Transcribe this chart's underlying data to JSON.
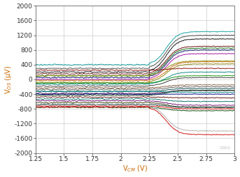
{
  "xlabel": "V$_{CM}$ (V)",
  "ylabel": "V$_{OS}$ (μV)",
  "xlim": [
    1.25,
    3.0
  ],
  "ylim": [
    -2000,
    2000
  ],
  "xticks": [
    1.25,
    1.5,
    1.75,
    2.0,
    2.25,
    2.5,
    2.75,
    3.0
  ],
  "yticks": [
    -2000,
    -1600,
    -1200,
    -800,
    -400,
    0,
    400,
    800,
    1200,
    1600,
    2000
  ],
  "watermark": "C001",
  "x_start": 1.25,
  "x_trans_start": 2.25,
  "x_trans_end": 2.75,
  "x_end": 3.0,
  "traces": [
    {
      "flat": 400,
      "final": 1300,
      "color": "#009999",
      "lw": 0.7
    },
    {
      "flat": 300,
      "final": 1200,
      "color": "#444444",
      "lw": 0.7
    },
    {
      "flat": 200,
      "final": 1100,
      "color": "#000000",
      "lw": 0.7
    },
    {
      "flat": 150,
      "final": 900,
      "color": "#660000",
      "lw": 0.7
    },
    {
      "flat": 100,
      "final": 850,
      "color": "#006600",
      "lw": 0.7
    },
    {
      "flat": 50,
      "final": 800,
      "color": "#000066",
      "lw": 0.7
    },
    {
      "flat": 0,
      "final": 700,
      "color": "#990099",
      "lw": 0.7
    },
    {
      "flat": -30,
      "final": 480,
      "color": "#cc6600",
      "lw": 0.7
    },
    {
      "flat": -80,
      "final": 420,
      "color": "#808000",
      "lw": 0.7
    },
    {
      "flat": -130,
      "final": 200,
      "color": "#008080",
      "lw": 0.7
    },
    {
      "flat": -180,
      "final": 50,
      "color": "#333333",
      "lw": 0.7
    },
    {
      "flat": -230,
      "final": -150,
      "color": "#7b4f2e",
      "lw": 0.7
    },
    {
      "flat": -270,
      "final": -200,
      "color": "#555555",
      "lw": 0.7
    },
    {
      "flat": -320,
      "final": -250,
      "color": "#004444",
      "lw": 0.7
    },
    {
      "flat": -380,
      "final": -300,
      "color": "#440044",
      "lw": 0.7
    },
    {
      "flat": -430,
      "final": -300,
      "color": "#003300",
      "lw": 0.7
    },
    {
      "flat": -480,
      "final": -500,
      "color": "#550000",
      "lw": 0.7
    },
    {
      "flat": -530,
      "final": -600,
      "color": "#006666",
      "lw": 0.7
    },
    {
      "flat": -580,
      "final": -700,
      "color": "#660066",
      "lw": 0.7
    },
    {
      "flat": -630,
      "final": -750,
      "color": "#333300",
      "lw": 0.7
    },
    {
      "flat": -680,
      "final": -760,
      "color": "#003333",
      "lw": 0.7
    },
    {
      "flat": -720,
      "final": -800,
      "color": "#cc0000",
      "lw": 0.7
    },
    {
      "flat": -760,
      "final": -850,
      "color": "#004400",
      "lw": 0.7
    },
    {
      "flat": -700,
      "final": -1400,
      "color": "#aaaaaa",
      "lw": 0.7
    },
    {
      "flat": -750,
      "final": -1500,
      "color": "#cc0000",
      "lw": 0.7
    },
    {
      "flat": 250,
      "final": 300,
      "color": "#880000",
      "lw": 0.7
    },
    {
      "flat": -100,
      "final": 100,
      "color": "#008800",
      "lw": 0.7
    },
    {
      "flat": -400,
      "final": -400,
      "color": "#000088",
      "lw": 0.7
    },
    {
      "flat": 100,
      "final": 500,
      "color": "#888800",
      "lw": 0.7
    },
    {
      "flat": -330,
      "final": -350,
      "color": "#008888",
      "lw": 0.7
    }
  ],
  "axis_label_color": "#cc6600",
  "font_size": 7,
  "grid_color": "#cccccc",
  "grid_lw": 0.5,
  "bg_color": "#ffffff"
}
